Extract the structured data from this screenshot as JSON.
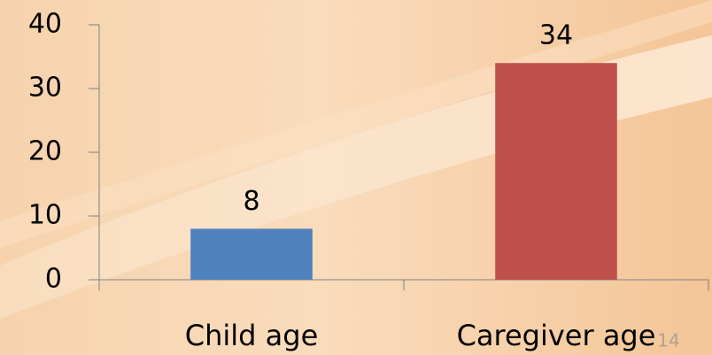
{
  "chart_data": {
    "type": "bar",
    "categories": [
      "Child age",
      "Caregiver age"
    ],
    "values": [
      8,
      34
    ],
    "colors": [
      "#4f81bd",
      "#c0504d"
    ],
    "ylim": [
      0,
      40
    ],
    "yticks": [
      0,
      10,
      20,
      30,
      40
    ],
    "data_labels": true
  },
  "slide_number": "14"
}
